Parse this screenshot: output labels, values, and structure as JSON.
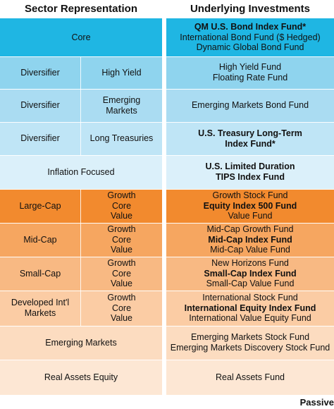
{
  "headers": {
    "left": "Sector Representation",
    "right": "Underlying Investments"
  },
  "rows": [
    {
      "color": "#1fb6e3",
      "sector": "Core",
      "investments": [
        {
          "text": "QM U.S. Bond Index Fund*",
          "bold": true
        },
        {
          "text": "International Bond Fund ($ Hedged)",
          "bold": false
        },
        {
          "text": "Dynamic Global Bond Fund",
          "bold": false
        }
      ]
    },
    {
      "color": "#8fd4ee",
      "sector": "Diversifier",
      "sub": [
        "High Yield"
      ],
      "investments": [
        {
          "text": "High Yield Fund",
          "bold": false
        },
        {
          "text": "Floating Rate Fund",
          "bold": false
        }
      ]
    },
    {
      "color": "#aadcf2",
      "sector": "Diversifier",
      "sub": [
        "Emerging",
        "Markets"
      ],
      "investments": [
        {
          "text": "Emerging Markets Bond Fund",
          "bold": false
        }
      ]
    },
    {
      "color": "#bfe5f6",
      "sector": "Diversifier",
      "sub": [
        "Long Treasuries"
      ],
      "investments": [
        {
          "text": "U.S. Treasury Long-Term",
          "bold": true
        },
        {
          "text": "Index Fund*",
          "bold": true
        }
      ]
    },
    {
      "color": "#dbf0fa",
      "sector": "Inflation Focused",
      "investments": [
        {
          "text": "U.S. Limited Duration",
          "bold": true
        },
        {
          "text": "TIPS Index Fund",
          "bold": true
        }
      ]
    },
    {
      "color": "#f28a2e",
      "sector": "Large-Cap",
      "sub": [
        "Growth",
        "Core",
        "Value"
      ],
      "investments": [
        {
          "text": "Growth Stock Fund",
          "bold": false
        },
        {
          "text": "Equity Index 500 Fund",
          "bold": true
        },
        {
          "text": "Value Fund",
          "bold": false
        }
      ]
    },
    {
      "color": "#f6a660",
      "sector": "Mid-Cap",
      "sub": [
        "Growth",
        "Core",
        "Value"
      ],
      "investments": [
        {
          "text": "Mid-Cap Growth Fund",
          "bold": false
        },
        {
          "text": "Mid-Cap Index Fund",
          "bold": true
        },
        {
          "text": "Mid-Cap Value Fund",
          "bold": false
        }
      ]
    },
    {
      "color": "#f8b983",
      "sector": "Small-Cap",
      "sub": [
        "Growth",
        "Core",
        "Value"
      ],
      "investments": [
        {
          "text": "New Horizons Fund",
          "bold": false
        },
        {
          "text": "Small-Cap Index Fund",
          "bold": true
        },
        {
          "text": "Small-Cap Value Fund",
          "bold": false
        }
      ]
    },
    {
      "color": "#fbcca4",
      "sector": "Developed Int'l Markets",
      "sub": [
        "Growth",
        "Core",
        "Value"
      ],
      "investments": [
        {
          "text": "International Stock Fund",
          "bold": false
        },
        {
          "text": "International Equity Index Fund",
          "bold": true
        },
        {
          "text": "International Value Equity Fund",
          "bold": false
        }
      ]
    },
    {
      "color": "#fcdcc0",
      "sector": "Emerging Markets",
      "investments": [
        {
          "text": "Emerging Markets Stock Fund",
          "bold": false
        },
        {
          "text": "Emerging Markets Discovery Stock Fund",
          "bold": false
        }
      ]
    },
    {
      "color": "#fde7d4",
      "sector": "Real Assets Equity",
      "investments": [
        {
          "text": "Real Assets Fund",
          "bold": false
        }
      ]
    }
  ],
  "footer": "Passive"
}
